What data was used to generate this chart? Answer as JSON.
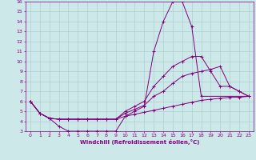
{
  "xlabel": "Windchill (Refroidissement éolien,°C)",
  "xlim": [
    -0.5,
    23.5
  ],
  "ylim": [
    3,
    16
  ],
  "xticks": [
    0,
    1,
    2,
    3,
    4,
    5,
    6,
    7,
    8,
    9,
    10,
    11,
    12,
    13,
    14,
    15,
    16,
    17,
    18,
    19,
    20,
    21,
    22,
    23
  ],
  "yticks": [
    3,
    4,
    5,
    6,
    7,
    8,
    9,
    10,
    11,
    12,
    13,
    14,
    15,
    16
  ],
  "background_color": "#cde8e8",
  "line_color": "#800080",
  "grid_color": "#aac8c8",
  "series": [
    {
      "x": [
        0,
        1,
        2,
        3,
        4,
        5,
        6,
        7,
        8,
        9,
        10,
        11,
        12,
        13,
        14,
        15,
        16,
        17,
        18,
        23
      ],
      "y": [
        6.0,
        4.8,
        4.3,
        3.5,
        3.0,
        3.0,
        3.0,
        3.0,
        3.0,
        3.0,
        4.5,
        5.0,
        5.5,
        11.0,
        14.0,
        16.0,
        16.0,
        13.5,
        6.5,
        6.5
      ]
    },
    {
      "x": [
        0,
        1,
        2,
        3,
        4,
        5,
        6,
        7,
        8,
        9,
        10,
        11,
        12,
        13,
        14,
        15,
        16,
        17,
        18,
        19,
        20,
        21,
        22,
        23
      ],
      "y": [
        6.0,
        4.8,
        4.3,
        4.2,
        4.2,
        4.2,
        4.2,
        4.2,
        4.2,
        4.2,
        5.0,
        5.5,
        6.0,
        7.5,
        8.5,
        9.5,
        10.0,
        10.5,
        10.5,
        9.0,
        7.5,
        7.5,
        7.0,
        6.5
      ]
    },
    {
      "x": [
        0,
        1,
        2,
        3,
        4,
        5,
        6,
        7,
        8,
        9,
        10,
        11,
        12,
        13,
        14,
        15,
        16,
        17,
        18,
        19,
        20,
        21,
        22,
        23
      ],
      "y": [
        6.0,
        4.8,
        4.3,
        4.2,
        4.2,
        4.2,
        4.2,
        4.2,
        4.2,
        4.2,
        4.8,
        5.2,
        5.6,
        6.5,
        7.0,
        7.8,
        8.5,
        8.8,
        9.0,
        9.2,
        9.5,
        7.5,
        7.0,
        6.5
      ]
    },
    {
      "x": [
        0,
        1,
        2,
        3,
        4,
        5,
        6,
        7,
        8,
        9,
        10,
        11,
        12,
        13,
        14,
        15,
        16,
        17,
        18,
        19,
        20,
        21,
        22,
        23
      ],
      "y": [
        6.0,
        4.8,
        4.3,
        4.2,
        4.2,
        4.2,
        4.2,
        4.2,
        4.2,
        4.2,
        4.5,
        4.7,
        4.9,
        5.1,
        5.3,
        5.5,
        5.7,
        5.9,
        6.1,
        6.2,
        6.3,
        6.4,
        6.4,
        6.5
      ]
    }
  ]
}
